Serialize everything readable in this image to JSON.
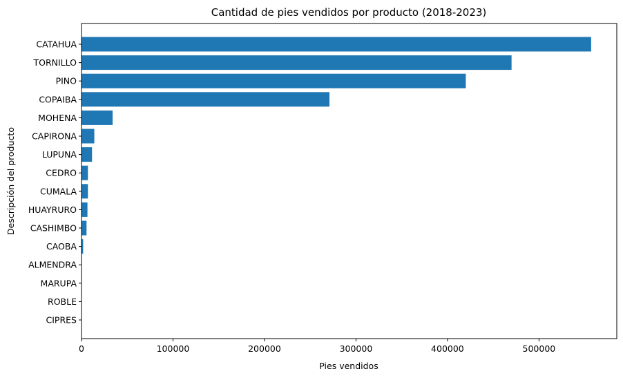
{
  "chart_data": {
    "type": "bar",
    "orientation": "horizontal",
    "title": "Cantidad de pies vendidos por producto (2018-2023)",
    "xlabel": "Pies vendidos",
    "ylabel": "Descripción del producto",
    "categories": [
      "CATAHUA",
      "TORNILLO",
      "PINO",
      "COPAIBA",
      "MOHENA",
      "CAPIRONA",
      "LUPUNA",
      "CEDRO",
      "CUMALA",
      "HUAYRURO",
      "CASHIMBO",
      "CAOBA",
      "ALMENDRA",
      "MARUPA",
      "ROBLE",
      "CIPRES"
    ],
    "values": [
      557000,
      470000,
      420000,
      271000,
      34000,
      14000,
      11500,
      7000,
      7000,
      6500,
      5500,
      1800,
      400,
      300,
      200,
      100
    ],
    "xlim": [
      0,
      585000
    ],
    "xticks": [
      0,
      100000,
      200000,
      300000,
      400000,
      500000
    ],
    "xtick_labels": [
      "0",
      "100000",
      "200000",
      "300000",
      "400000",
      "500000"
    ],
    "grid": false,
    "color": "#1f77b4"
  }
}
